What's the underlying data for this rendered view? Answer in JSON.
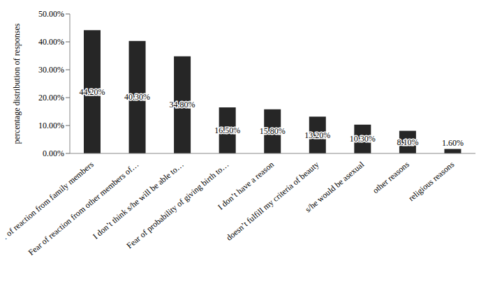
{
  "chart_data": {
    "type": "bar",
    "y_label": "percentage distribution of responses",
    "categories": [
      "Fear of reaction from family members",
      "Fear of reaction from other members of…",
      "I don’t think s/he will be able to…",
      "Fear of probability of giving birth to…",
      "I don’t have a reason",
      "doesn’t fulfill my criteria of beauty",
      "s/he would be asexual",
      "other reasons",
      "religious reasons"
    ],
    "values": [
      44.2,
      40.3,
      34.8,
      16.5,
      15.8,
      13.2,
      10.3,
      8.1,
      1.6
    ],
    "value_labels": [
      "44.20%",
      "40.30%",
      "34.80%",
      "16.50%",
      "15.80%",
      "13.20%",
      "10.30%",
      "8.10%",
      "1.60%"
    ],
    "data_labels": true,
    "color": "#262626",
    "ylim": [
      0,
      50
    ],
    "yticks": [
      {
        "value": 0,
        "label": "0.00%"
      },
      {
        "value": 10,
        "label": "10.00%"
      },
      {
        "value": 20,
        "label": "20.00%"
      },
      {
        "value": 30,
        "label": "30.00%"
      },
      {
        "value": 40,
        "label": "40.00%"
      },
      {
        "value": 50,
        "label": "50.00%"
      }
    ],
    "grid": false
  }
}
